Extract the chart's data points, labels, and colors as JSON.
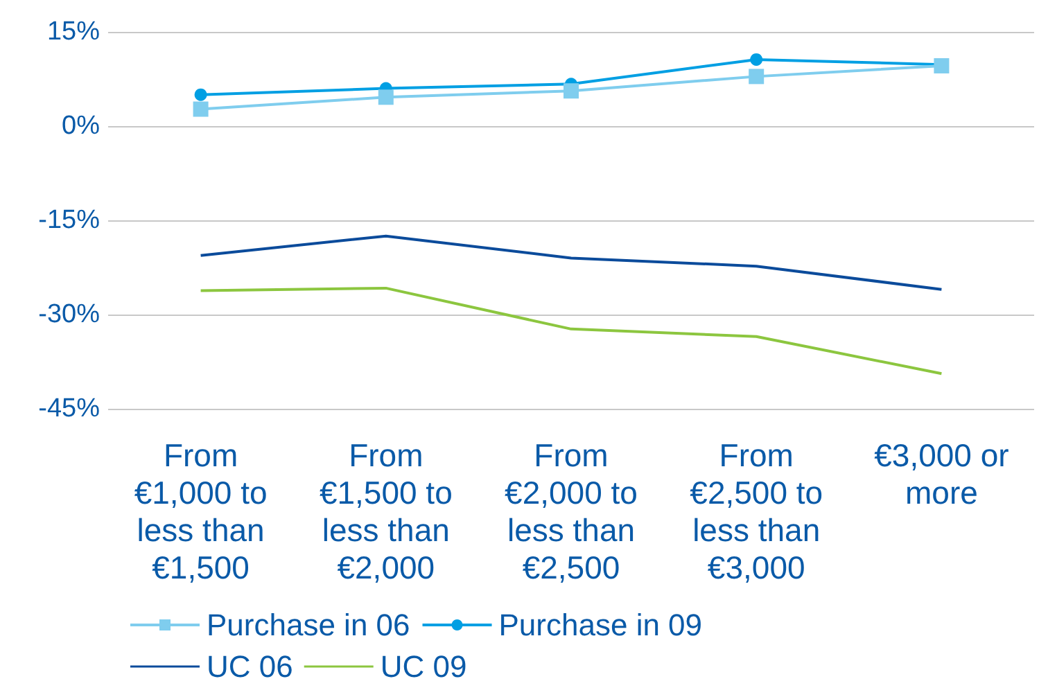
{
  "chart_data": {
    "type": "line",
    "categories": [
      "From €1,000 to less than €1,500",
      "From €1,500 to less than €2,000",
      "From €2,000 to less than €2,500",
      "From €2,500 to less than €3,000",
      "€3,000 or more"
    ],
    "series": [
      {
        "name": "Purchase in 06",
        "color": "#7fcdee",
        "marker": "square",
        "values": [
          2.7,
          4.6,
          5.6,
          7.9,
          9.6
        ]
      },
      {
        "name": "Purchase in 09",
        "color": "#009fe3",
        "marker": "circle",
        "values": [
          5.0,
          6.0,
          6.7,
          10.6,
          9.8
        ]
      },
      {
        "name": "UC 06",
        "color": "#0b4b9b",
        "marker": "none",
        "values": [
          -20.6,
          -17.5,
          -21.0,
          -22.3,
          -26.0
        ]
      },
      {
        "name": "UC 09",
        "color": "#8cc63f",
        "marker": "none",
        "values": [
          -26.2,
          -25.8,
          -32.3,
          -33.5,
          -39.4
        ]
      }
    ],
    "ylim": [
      -45,
      15
    ],
    "yticks": [
      {
        "value": 15,
        "label": "15%"
      },
      {
        "value": 0,
        "label": "0%"
      },
      {
        "value": -15,
        "label": "-15%"
      },
      {
        "value": -30,
        "label": "-30%"
      },
      {
        "value": -45,
        "label": "-45%"
      }
    ],
    "grid": "y",
    "legend": "bottom",
    "line_style": "solid"
  }
}
